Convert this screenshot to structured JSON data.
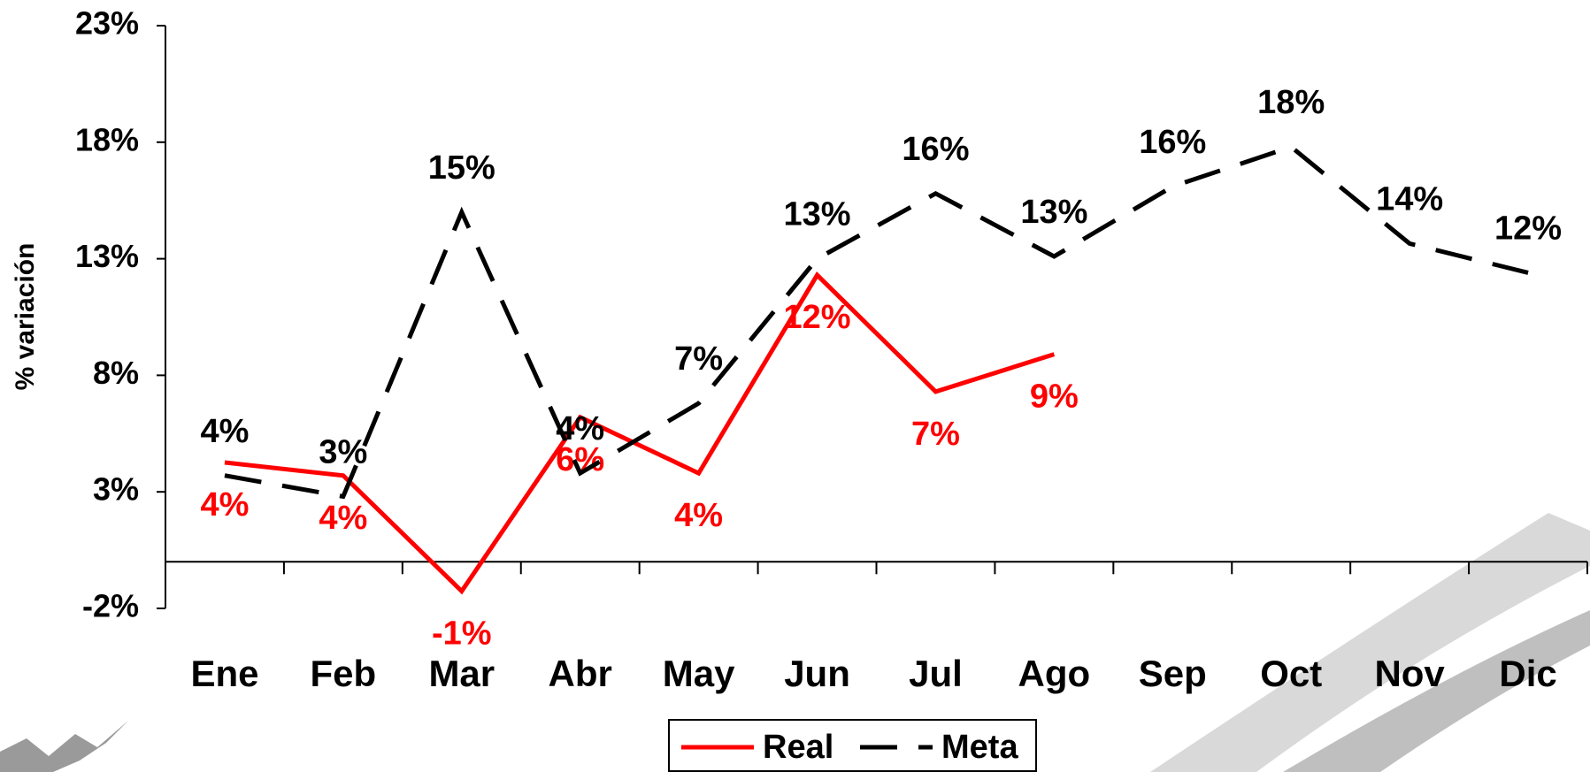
{
  "chart_data": {
    "type": "line",
    "y_label": "% variación",
    "categories": [
      "Ene",
      "Feb",
      "Mar",
      "Abr",
      "May",
      "Jun",
      "Jul",
      "Ago",
      "Sep",
      "Oct",
      "Nov",
      "Dic"
    ],
    "series": [
      {
        "name": "Real",
        "color": "#ff0000",
        "dashed": false,
        "values": [
          4.26,
          3.7,
          -1.26,
          6.2,
          3.8,
          12.3,
          7.3,
          8.9,
          null,
          null,
          null,
          null
        ],
        "value_labels": [
          "4%",
          "4%",
          "-1%",
          "6%",
          "4%",
          "12%",
          "7%",
          "9%",
          null,
          null,
          null,
          null
        ]
      },
      {
        "name": "Meta",
        "color": "#000000",
        "dashed": true,
        "values": [
          3.7,
          2.8,
          15.0,
          3.8,
          6.8,
          13.0,
          15.8,
          13.1,
          16.1,
          17.8,
          13.65,
          12.4
        ],
        "value_labels": [
          "4%",
          "3%",
          "15%",
          "4%",
          "7%",
          "13%",
          "16%",
          "13%",
          "16%",
          "18%",
          "14%",
          "12%"
        ]
      }
    ],
    "ylim": [
      -2,
      23
    ],
    "yticks": [
      {
        "value": -2,
        "label": "-2%"
      },
      {
        "value": 3,
        "label": "3%"
      },
      {
        "value": 8,
        "label": "8%"
      },
      {
        "value": 13,
        "label": "13%"
      },
      {
        "value": 18,
        "label": "18%"
      },
      {
        "value": 23,
        "label": "23%"
      }
    ],
    "grid": false,
    "legend": "bottom"
  }
}
